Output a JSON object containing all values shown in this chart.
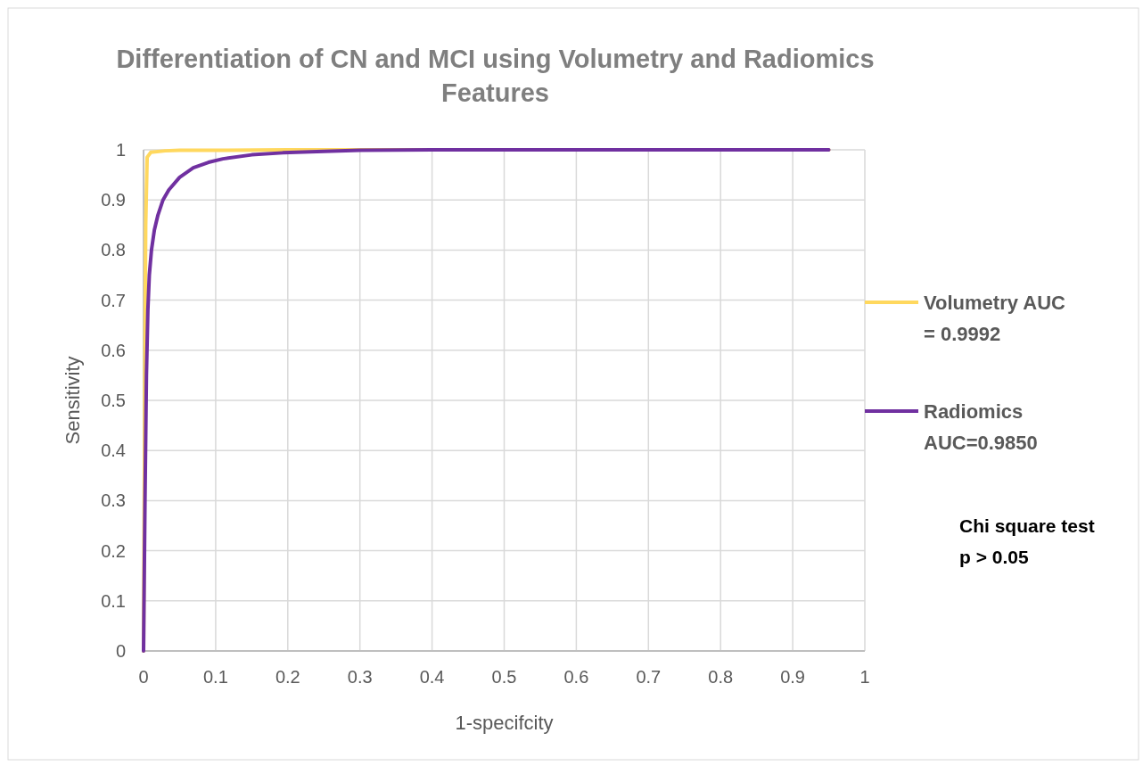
{
  "chart_data": {
    "type": "line",
    "title": "Differentiation of CN and MCI using Volumetry and Radiomics Features",
    "xlabel": "1-specifcity",
    "ylabel": "Sensitivity",
    "xlim": [
      0,
      1
    ],
    "xticks": [
      0,
      0.1,
      0.2,
      0.3,
      0.4,
      0.5,
      0.6,
      0.7,
      0.8,
      0.9,
      1
    ],
    "ylim": [
      0,
      1
    ],
    "yticks": [
      0,
      0.1,
      0.2,
      0.3,
      0.4,
      0.5,
      0.6,
      0.7,
      0.8,
      0.9,
      1
    ],
    "grid": true,
    "legend": "right",
    "marker": "none",
    "line_style": "solid",
    "series": [
      {
        "name": "Volumetry AUC = 0.9992",
        "color": "#ffd85e",
        "x": [
          0,
          0.001,
          0.002,
          0.003,
          0.005,
          0.01,
          0.03,
          0.05,
          0.1,
          0.2,
          0.3,
          0.95
        ],
        "values": [
          0,
          0.3,
          0.6,
          0.85,
          0.985,
          0.995,
          0.998,
          0.999,
          0.999,
          1,
          1,
          1
        ]
      },
      {
        "name": "Radiomics AUC=0.9850",
        "color": "#7030a0",
        "x": [
          0,
          0.002,
          0.004,
          0.006,
          0.008,
          0.011,
          0.015,
          0.02,
          0.027,
          0.035,
          0.05,
          0.069,
          0.09,
          0.11,
          0.15,
          0.193,
          0.25,
          0.3,
          0.4,
          0.6,
          0.95
        ],
        "values": [
          0,
          0.3,
          0.55,
          0.68,
          0.75,
          0.8,
          0.84,
          0.87,
          0.9,
          0.92,
          0.945,
          0.964,
          0.975,
          0.982,
          0.99,
          0.994,
          0.997,
          0.999,
          1,
          1,
          1
        ]
      }
    ],
    "annotations": [
      "Chi square test",
      "p > 0.05"
    ]
  }
}
